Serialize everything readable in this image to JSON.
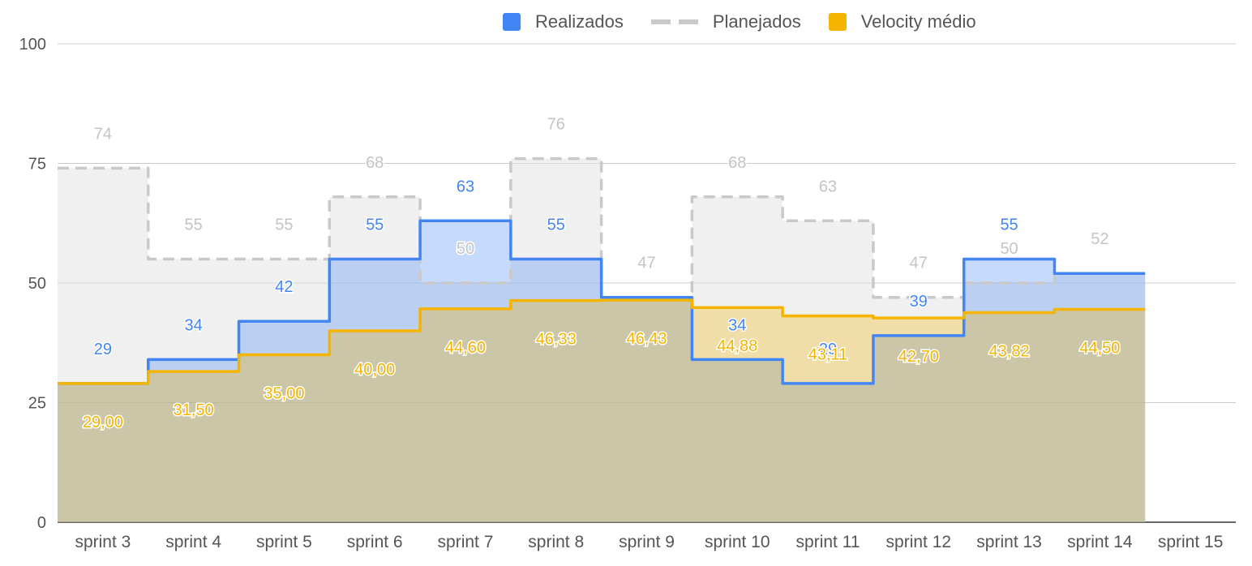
{
  "legend": {
    "realizados": "Realizados",
    "planejados": "Planejados",
    "velocity": "Velocity médio"
  },
  "colors": {
    "realizados": "#4285f4",
    "planejados": "#c9c9c9",
    "velocity": "#f4b400",
    "grid": "#cccccc",
    "tick": "#555555"
  },
  "chart_data": {
    "type": "area",
    "step": true,
    "categories": [
      "sprint 3",
      "sprint 4",
      "sprint 5",
      "sprint 6",
      "sprint 7",
      "sprint 8",
      "sprint 9",
      "sprint 10",
      "sprint 11",
      "sprint 12",
      "sprint 13",
      "sprint 14",
      "sprint 15"
    ],
    "series": [
      {
        "name": "Realizados",
        "values": [
          29,
          34,
          42,
          55,
          63,
          55,
          47,
          34,
          29,
          39,
          55,
          52,
          null
        ],
        "labels": [
          "29",
          "34",
          "42",
          "55",
          "63",
          "55",
          "",
          "34",
          "29",
          "39",
          "55",
          "",
          ""
        ]
      },
      {
        "name": "Planejados",
        "values": [
          74,
          55,
          55,
          68,
          50,
          76,
          47,
          68,
          63,
          47,
          50,
          52,
          null
        ],
        "labels": [
          "74",
          "55",
          "55",
          "68",
          "50",
          "76",
          "47",
          "68",
          "63",
          "47",
          "50",
          "52",
          ""
        ]
      },
      {
        "name": "Velocity médio",
        "values": [
          29.0,
          31.5,
          35.0,
          40.0,
          44.6,
          46.33,
          46.43,
          44.88,
          43.11,
          42.7,
          43.82,
          44.5,
          null
        ],
        "labels": [
          "29,00",
          "31,50",
          "35,00",
          "40,00",
          "44,60",
          "46,33",
          "46,43",
          "44,88",
          "43,11",
          "42,70",
          "43,82",
          "44,50",
          ""
        ]
      }
    ],
    "ylim": [
      0,
      100
    ],
    "yticks": [
      "0",
      "25",
      "50",
      "75",
      "100"
    ],
    "grid": true,
    "legend_position": "top"
  }
}
